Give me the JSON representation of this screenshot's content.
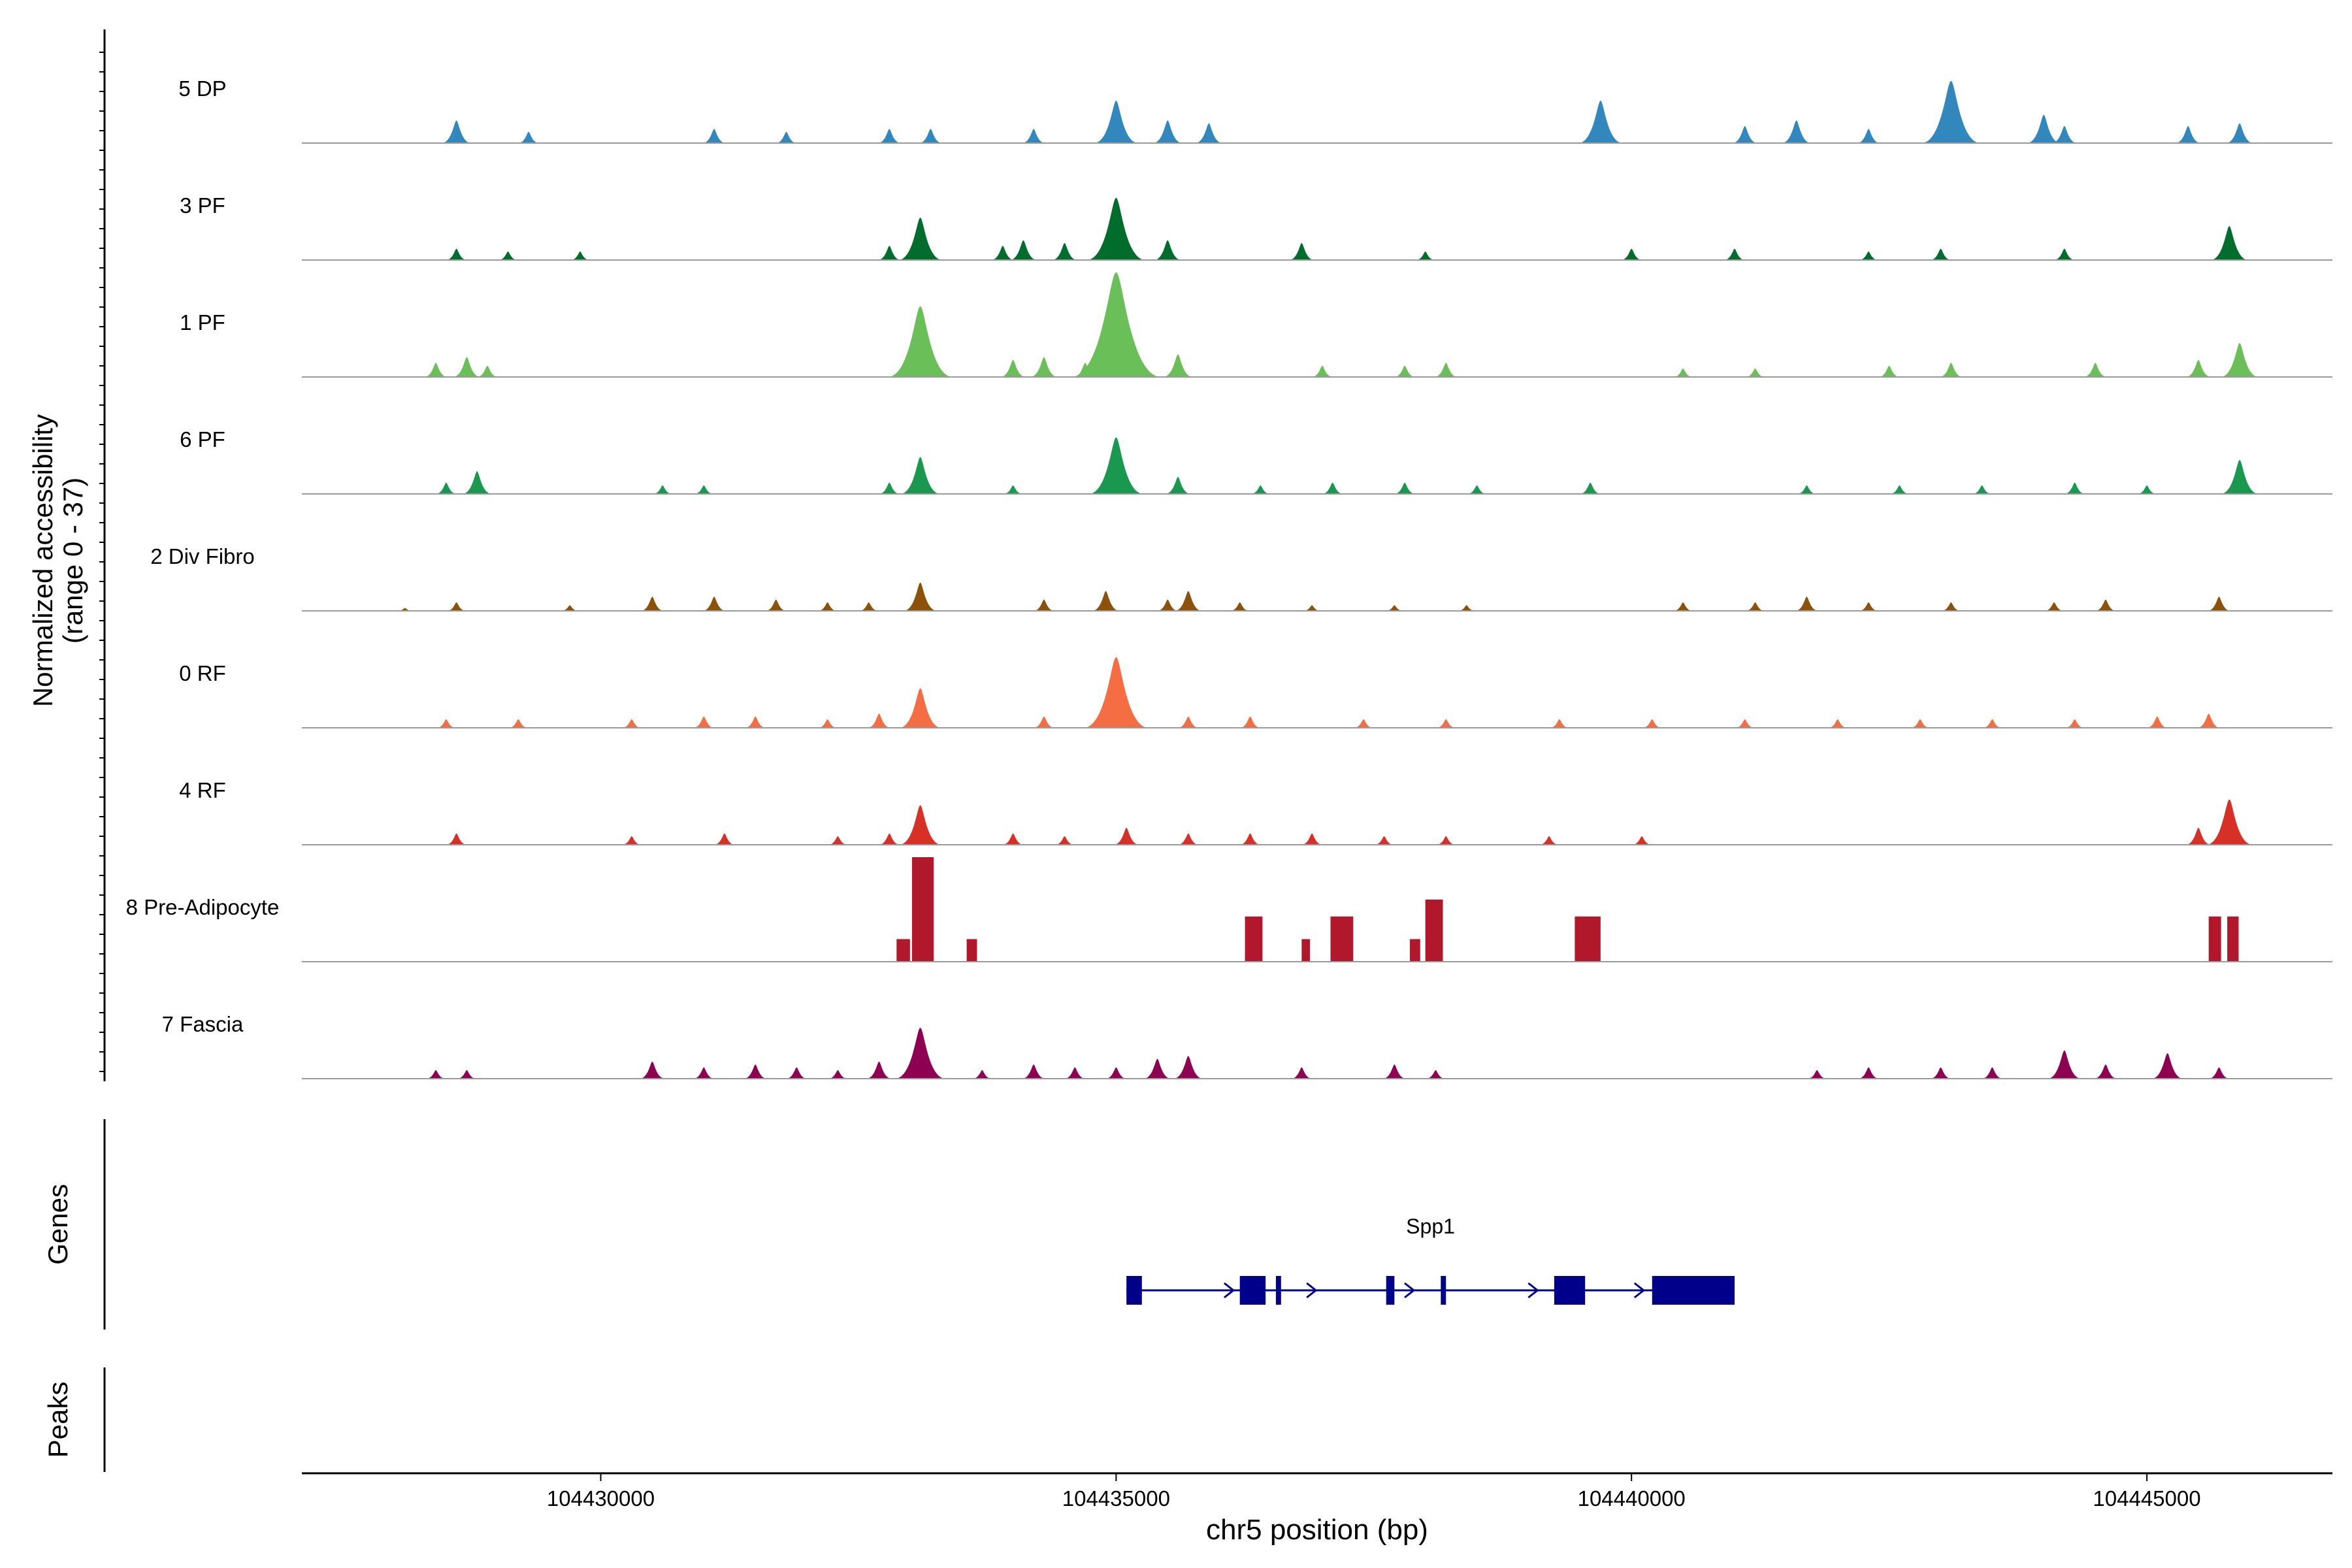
{
  "chart_data": {
    "type": "area",
    "title": "",
    "ylabel_line1": "Normalized accessibility",
    "ylabel_line2": "(range 0 - 37)",
    "xlabel": "chr5 position (bp)",
    "xlim": [
      104427100,
      104446800
    ],
    "ylim": [
      0,
      37
    ],
    "x_ticks": [
      104430000,
      104435000,
      104440000,
      104445000
    ],
    "x_tick_labels": [
      "104430000",
      "104435000",
      "104440000",
      "104445000"
    ],
    "series": [
      {
        "name": "5 DP",
        "color": "#3288BD",
        "peaks": [
          [
            104428600,
            8
          ],
          [
            104429300,
            4
          ],
          [
            104431100,
            5
          ],
          [
            104431800,
            4
          ],
          [
            104432800,
            5
          ],
          [
            104433200,
            5
          ],
          [
            104434200,
            5
          ],
          [
            104435000,
            15
          ],
          [
            104435500,
            8
          ],
          [
            104435900,
            7
          ],
          [
            104439700,
            15
          ],
          [
            104441100,
            6
          ],
          [
            104441600,
            8
          ],
          [
            104442300,
            5
          ],
          [
            104443100,
            22
          ],
          [
            104444000,
            10
          ],
          [
            104444200,
            6
          ],
          [
            104445400,
            6
          ],
          [
            104445900,
            7
          ]
        ]
      },
      {
        "name": "3 PF",
        "color": "#006D2C",
        "peaks": [
          [
            104428600,
            4
          ],
          [
            104429100,
            3
          ],
          [
            104429800,
            3
          ],
          [
            104432800,
            5
          ],
          [
            104433100,
            15
          ],
          [
            104433900,
            5
          ],
          [
            104434100,
            7
          ],
          [
            104434500,
            6
          ],
          [
            104435000,
            22
          ],
          [
            104435500,
            7
          ],
          [
            104436800,
            6
          ],
          [
            104438000,
            3
          ],
          [
            104440000,
            4
          ],
          [
            104441000,
            4
          ],
          [
            104442300,
            3
          ],
          [
            104443000,
            4
          ],
          [
            104444200,
            4
          ],
          [
            104445800,
            12
          ]
        ]
      },
      {
        "name": "1 PF",
        "color": "#6BBF59",
        "peaks": [
          [
            104428400,
            5
          ],
          [
            104428700,
            7
          ],
          [
            104428900,
            4
          ],
          [
            104433100,
            25
          ],
          [
            104434000,
            6
          ],
          [
            104434300,
            7
          ],
          [
            104434700,
            5
          ],
          [
            104435000,
            37
          ],
          [
            104435600,
            8
          ],
          [
            104437000,
            4
          ],
          [
            104437800,
            4
          ],
          [
            104438200,
            5
          ],
          [
            104440500,
            3
          ],
          [
            104441200,
            3
          ],
          [
            104442500,
            4
          ],
          [
            104443100,
            5
          ],
          [
            104444500,
            5
          ],
          [
            104445500,
            6
          ],
          [
            104445900,
            12
          ]
        ]
      },
      {
        "name": "6 PF",
        "color": "#1A9850",
        "peaks": [
          [
            104428500,
            4
          ],
          [
            104428800,
            8
          ],
          [
            104430600,
            3
          ],
          [
            104431000,
            3
          ],
          [
            104432800,
            4
          ],
          [
            104433100,
            13
          ],
          [
            104434000,
            3
          ],
          [
            104435000,
            20
          ],
          [
            104435600,
            6
          ],
          [
            104436400,
            3
          ],
          [
            104437100,
            4
          ],
          [
            104437800,
            4
          ],
          [
            104438500,
            3
          ],
          [
            104439600,
            4
          ],
          [
            104441700,
            3
          ],
          [
            104442600,
            3
          ],
          [
            104443400,
            3
          ],
          [
            104444300,
            4
          ],
          [
            104445000,
            3
          ],
          [
            104445900,
            12
          ]
        ]
      },
      {
        "name": "2 Div Fibro",
        "color": "#8C510A",
        "peaks": [
          [
            104428100,
            1
          ],
          [
            104428600,
            3
          ],
          [
            104429700,
            2
          ],
          [
            104430500,
            5
          ],
          [
            104431100,
            5
          ],
          [
            104431700,
            4
          ],
          [
            104432200,
            3
          ],
          [
            104432600,
            3
          ],
          [
            104433100,
            10
          ],
          [
            104434300,
            4
          ],
          [
            104434900,
            7
          ],
          [
            104435500,
            4
          ],
          [
            104435700,
            7
          ],
          [
            104436200,
            3
          ],
          [
            104436900,
            2
          ],
          [
            104437700,
            2
          ],
          [
            104438400,
            2
          ],
          [
            104440500,
            3
          ],
          [
            104441200,
            3
          ],
          [
            104441700,
            5
          ],
          [
            104442300,
            3
          ],
          [
            104443100,
            3
          ],
          [
            104444100,
            3
          ],
          [
            104444600,
            4
          ],
          [
            104445700,
            5
          ]
        ]
      },
      {
        "name": "0 RF",
        "color": "#F46D43",
        "peaks": [
          [
            104428500,
            3
          ],
          [
            104429200,
            3
          ],
          [
            104430300,
            3
          ],
          [
            104431000,
            4
          ],
          [
            104431500,
            4
          ],
          [
            104432200,
            3
          ],
          [
            104432700,
            5
          ],
          [
            104433100,
            14
          ],
          [
            104434300,
            4
          ],
          [
            104435000,
            25
          ],
          [
            104435700,
            4
          ],
          [
            104436300,
            4
          ],
          [
            104437400,
            3
          ],
          [
            104438200,
            3
          ],
          [
            104439300,
            3
          ],
          [
            104440200,
            3
          ],
          [
            104441100,
            3
          ],
          [
            104442000,
            3
          ],
          [
            104442800,
            3
          ],
          [
            104443500,
            3
          ],
          [
            104444300,
            3
          ],
          [
            104445100,
            4
          ],
          [
            104445600,
            5
          ]
        ]
      },
      {
        "name": "4 RF",
        "color": "#D73027",
        "peaks": [
          [
            104428600,
            4
          ],
          [
            104430300,
            3
          ],
          [
            104431200,
            4
          ],
          [
            104432300,
            3
          ],
          [
            104432800,
            4
          ],
          [
            104433100,
            14
          ],
          [
            104434000,
            4
          ],
          [
            104434500,
            3
          ],
          [
            104435100,
            6
          ],
          [
            104435700,
            4
          ],
          [
            104436300,
            4
          ],
          [
            104436900,
            4
          ],
          [
            104437600,
            3
          ],
          [
            104438200,
            3
          ],
          [
            104439200,
            3
          ],
          [
            104440100,
            3
          ],
          [
            104445500,
            6
          ],
          [
            104445800,
            16
          ]
        ]
      },
      {
        "name": "8 Pre-Adipocyte",
        "color": "#B2182B",
        "blocks": [
          [
            104432870,
            104433000,
            8
          ],
          [
            104433020,
            104433230,
            37
          ],
          [
            104433550,
            104433650,
            8
          ],
          [
            104436250,
            104436420,
            16
          ],
          [
            104436800,
            104436880,
            8
          ],
          [
            104437080,
            104437300,
            16
          ],
          [
            104437850,
            104437950,
            8
          ],
          [
            104438000,
            104438170,
            22
          ],
          [
            104439450,
            104439700,
            16
          ],
          [
            104445600,
            104445720,
            16
          ],
          [
            104445780,
            104445890,
            16
          ]
        ]
      },
      {
        "name": "7 Fascia",
        "color": "#8E0152",
        "peaks": [
          [
            104428400,
            3
          ],
          [
            104428700,
            3
          ],
          [
            104430500,
            6
          ],
          [
            104431000,
            4
          ],
          [
            104431500,
            5
          ],
          [
            104431900,
            4
          ],
          [
            104432300,
            3
          ],
          [
            104432700,
            6
          ],
          [
            104433100,
            18
          ],
          [
            104433700,
            3
          ],
          [
            104434200,
            5
          ],
          [
            104434600,
            4
          ],
          [
            104435000,
            4
          ],
          [
            104435400,
            7
          ],
          [
            104435700,
            8
          ],
          [
            104436800,
            4
          ],
          [
            104437700,
            5
          ],
          [
            104438100,
            3
          ],
          [
            104441800,
            3
          ],
          [
            104442300,
            4
          ],
          [
            104443000,
            4
          ],
          [
            104443500,
            4
          ],
          [
            104444200,
            10
          ],
          [
            104444600,
            5
          ],
          [
            104445200,
            9
          ],
          [
            104445700,
            4
          ]
        ]
      }
    ],
    "genes_label": "Genes",
    "peaks_label": "Peaks",
    "gene": {
      "name": "Spp1",
      "color": "#00008B",
      "start": 104435100,
      "end": 104441000,
      "exons": [
        [
          104435100,
          104435250
        ],
        [
          104436200,
          104436450
        ],
        [
          104436550,
          104436600
        ],
        [
          104437620,
          104437700
        ],
        [
          104438150,
          104438200
        ],
        [
          104439250,
          104439550
        ],
        [
          104440200,
          104441000
        ]
      ],
      "arrows": [
        104435200,
        104436100,
        104436900,
        104437850,
        104439050,
        104440080
      ]
    }
  }
}
